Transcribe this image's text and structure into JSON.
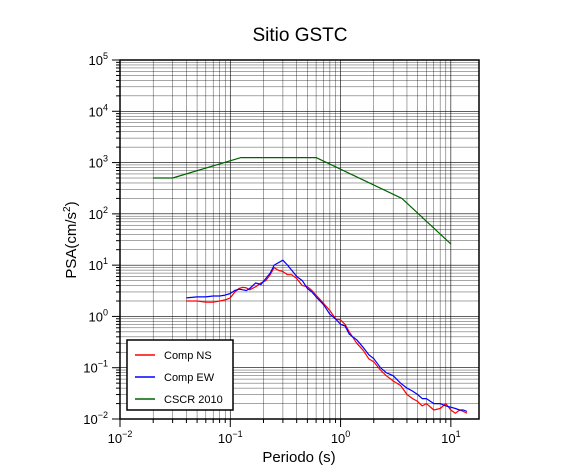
{
  "chart_data": {
    "type": "line",
    "title": "Sitio GSTC",
    "xlabel": "Periodo (s)",
    "ylabel": {
      "base": "PSA(cm/s",
      "exp": "2",
      "close": ")"
    },
    "x_scale": "log",
    "y_scale": "log",
    "xlim": [
      0.01,
      18
    ],
    "ylim": [
      0.01,
      100000
    ],
    "grid": true,
    "legend_position": "bottom-left",
    "x_ticks": [
      {
        "value": 0.01,
        "base": "10",
        "exp": "−2"
      },
      {
        "value": 0.1,
        "base": "10",
        "exp": "−1"
      },
      {
        "value": 1,
        "base": "10",
        "exp": "0"
      },
      {
        "value": 10,
        "base": "10",
        "exp": "1"
      }
    ],
    "y_ticks": [
      {
        "value": 0.01,
        "base": "10",
        "exp": "−2"
      },
      {
        "value": 0.1,
        "base": "10",
        "exp": "−1"
      },
      {
        "value": 1,
        "base": "10",
        "exp": "0"
      },
      {
        "value": 10,
        "base": "10",
        "exp": "1"
      },
      {
        "value": 100,
        "base": "10",
        "exp": "2"
      },
      {
        "value": 1000,
        "base": "10",
        "exp": "3"
      },
      {
        "value": 10000,
        "base": "10",
        "exp": "4"
      },
      {
        "value": 100000,
        "base": "10",
        "exp": "5"
      }
    ],
    "series": [
      {
        "name": "Comp NS",
        "color": "#ff0000",
        "x": [
          0.04,
          0.05,
          0.06,
          0.07,
          0.08,
          0.09,
          0.1,
          0.11,
          0.12,
          0.13,
          0.14,
          0.15,
          0.17,
          0.19,
          0.21,
          0.23,
          0.25,
          0.27,
          0.3,
          0.33,
          0.36,
          0.4,
          0.45,
          0.5,
          0.55,
          0.6,
          0.7,
          0.8,
          0.9,
          1.0,
          1.1,
          1.2,
          1.4,
          1.6,
          1.8,
          2.0,
          2.3,
          2.6,
          3.0,
          3.5,
          4.0,
          4.5,
          5.0,
          5.5,
          6.0,
          7.0,
          8.0,
          9.0,
          10.0,
          11.0,
          12.0,
          13.0,
          14.0
        ],
        "y": [
          2.0,
          2.0,
          1.9,
          1.9,
          2.0,
          2.1,
          2.3,
          3.0,
          3.5,
          3.7,
          3.6,
          3.3,
          3.8,
          4.5,
          5.0,
          6.5,
          9.0,
          8.0,
          7.5,
          6.5,
          6.5,
          5.5,
          4.0,
          3.8,
          3.2,
          2.6,
          1.8,
          1.3,
          0.9,
          0.85,
          0.7,
          0.5,
          0.3,
          0.22,
          0.15,
          0.13,
          0.09,
          0.07,
          0.055,
          0.045,
          0.03,
          0.025,
          0.022,
          0.018,
          0.02,
          0.015,
          0.016,
          0.02,
          0.015,
          0.013,
          0.015,
          0.014,
          0.013
        ]
      },
      {
        "name": "Comp EW",
        "color": "#0000ff",
        "x": [
          0.04,
          0.05,
          0.06,
          0.07,
          0.08,
          0.09,
          0.1,
          0.11,
          0.12,
          0.13,
          0.14,
          0.15,
          0.17,
          0.19,
          0.21,
          0.23,
          0.25,
          0.27,
          0.3,
          0.33,
          0.36,
          0.4,
          0.45,
          0.5,
          0.55,
          0.6,
          0.7,
          0.8,
          0.9,
          1.0,
          1.1,
          1.2,
          1.4,
          1.6,
          1.8,
          2.0,
          2.3,
          2.6,
          3.0,
          3.5,
          4.0,
          4.5,
          5.0,
          5.5,
          6.0,
          7.0,
          8.0,
          9.0,
          10.0,
          11.0,
          12.0,
          13.0,
          14.0
        ],
        "y": [
          2.3,
          2.4,
          2.4,
          2.5,
          2.5,
          2.6,
          2.8,
          3.2,
          3.4,
          3.3,
          3.2,
          3.5,
          4.5,
          4.2,
          5.5,
          7.0,
          10.0,
          11.0,
          12.5,
          10.0,
          8.0,
          6.0,
          5.0,
          3.5,
          3.0,
          2.4,
          1.7,
          1.1,
          0.9,
          0.7,
          0.65,
          0.45,
          0.35,
          0.25,
          0.18,
          0.15,
          0.1,
          0.08,
          0.07,
          0.05,
          0.04,
          0.035,
          0.03,
          0.025,
          0.025,
          0.02,
          0.02,
          0.018,
          0.017,
          0.016,
          0.015,
          0.015,
          0.014
        ]
      },
      {
        "name": "CSCR 2010",
        "color": "#006400",
        "x": [
          0.02,
          0.03,
          0.125,
          0.6,
          3.6,
          10.0
        ],
        "y": [
          500,
          500,
          1250,
          1250,
          200,
          26
        ]
      }
    ]
  }
}
